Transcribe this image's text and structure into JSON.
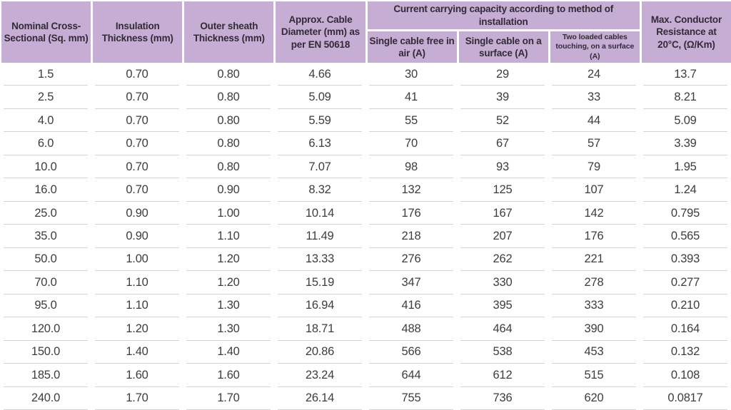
{
  "colors": {
    "header_bg": "#c5add3",
    "header_text": "#322b36",
    "body_text": "#3d3d3d",
    "divider": "#d2d2d2"
  },
  "header": {
    "nominal_cross_sectional": "Nominal Cross-Sectional (Sq. mm)",
    "insulation_thickness": "Insulation Thickness (mm)",
    "outer_sheath_thickness": "Outer sheath Thickness (mm)",
    "approx_cable_diameter": "Approx. Cable Diameter (mm) as per EN 50618",
    "current_capacity_group": "Current carrying capacity according to method of installation",
    "single_cable_free_air": "Single cable free in air (A)",
    "single_cable_surface": "Single cable on a surface (A)",
    "two_loaded_cables": "Two loaded cables touching, on a surface (A)",
    "max_conductor_resistance": "Max. Conductor Resistance at 20°C, (Ω/Km)"
  },
  "rows": [
    [
      "1.5",
      "0.70",
      "0.80",
      "4.66",
      "30",
      "29",
      "24",
      "13.7"
    ],
    [
      "2.5",
      "0.70",
      "0.80",
      "5.09",
      "41",
      "39",
      "33",
      "8.21"
    ],
    [
      "4.0",
      "0.70",
      "0.80",
      "5.59",
      "55",
      "52",
      "44",
      "5.09"
    ],
    [
      "6.0",
      "0.70",
      "0.80",
      "6.13",
      "70",
      "67",
      "57",
      "3.39"
    ],
    [
      "10.0",
      "0.70",
      "0.80",
      "7.07",
      "98",
      "93",
      "79",
      "1.95"
    ],
    [
      "16.0",
      "0.70",
      "0.90",
      "8.32",
      "132",
      "125",
      "107",
      "1.24"
    ],
    [
      "25.0",
      "0.90",
      "1.00",
      "10.14",
      "176",
      "167",
      "142",
      "0.795"
    ],
    [
      "35.0",
      "0.90",
      "1.10",
      "11.49",
      "218",
      "207",
      "176",
      "0.565"
    ],
    [
      "50.0",
      "1.00",
      "1.20",
      "13.33",
      "276",
      "262",
      "221",
      "0.393"
    ],
    [
      "70.0",
      "1.10",
      "1.20",
      "15.19",
      "347",
      "330",
      "278",
      "0.277"
    ],
    [
      "95.0",
      "1.10",
      "1.30",
      "16.94",
      "416",
      "395",
      "333",
      "0.210"
    ],
    [
      "120.0",
      "1.20",
      "1.30",
      "18.71",
      "488",
      "464",
      "390",
      "0.164"
    ],
    [
      "150.0",
      "1.40",
      "1.40",
      "20.86",
      "566",
      "538",
      "453",
      "0.132"
    ],
    [
      "185.0",
      "1.60",
      "1.60",
      "23.24",
      "644",
      "612",
      "515",
      "0.108"
    ],
    [
      "240.0",
      "1.70",
      "1.70",
      "26.14",
      "755",
      "736",
      "620",
      "0.0817"
    ]
  ]
}
